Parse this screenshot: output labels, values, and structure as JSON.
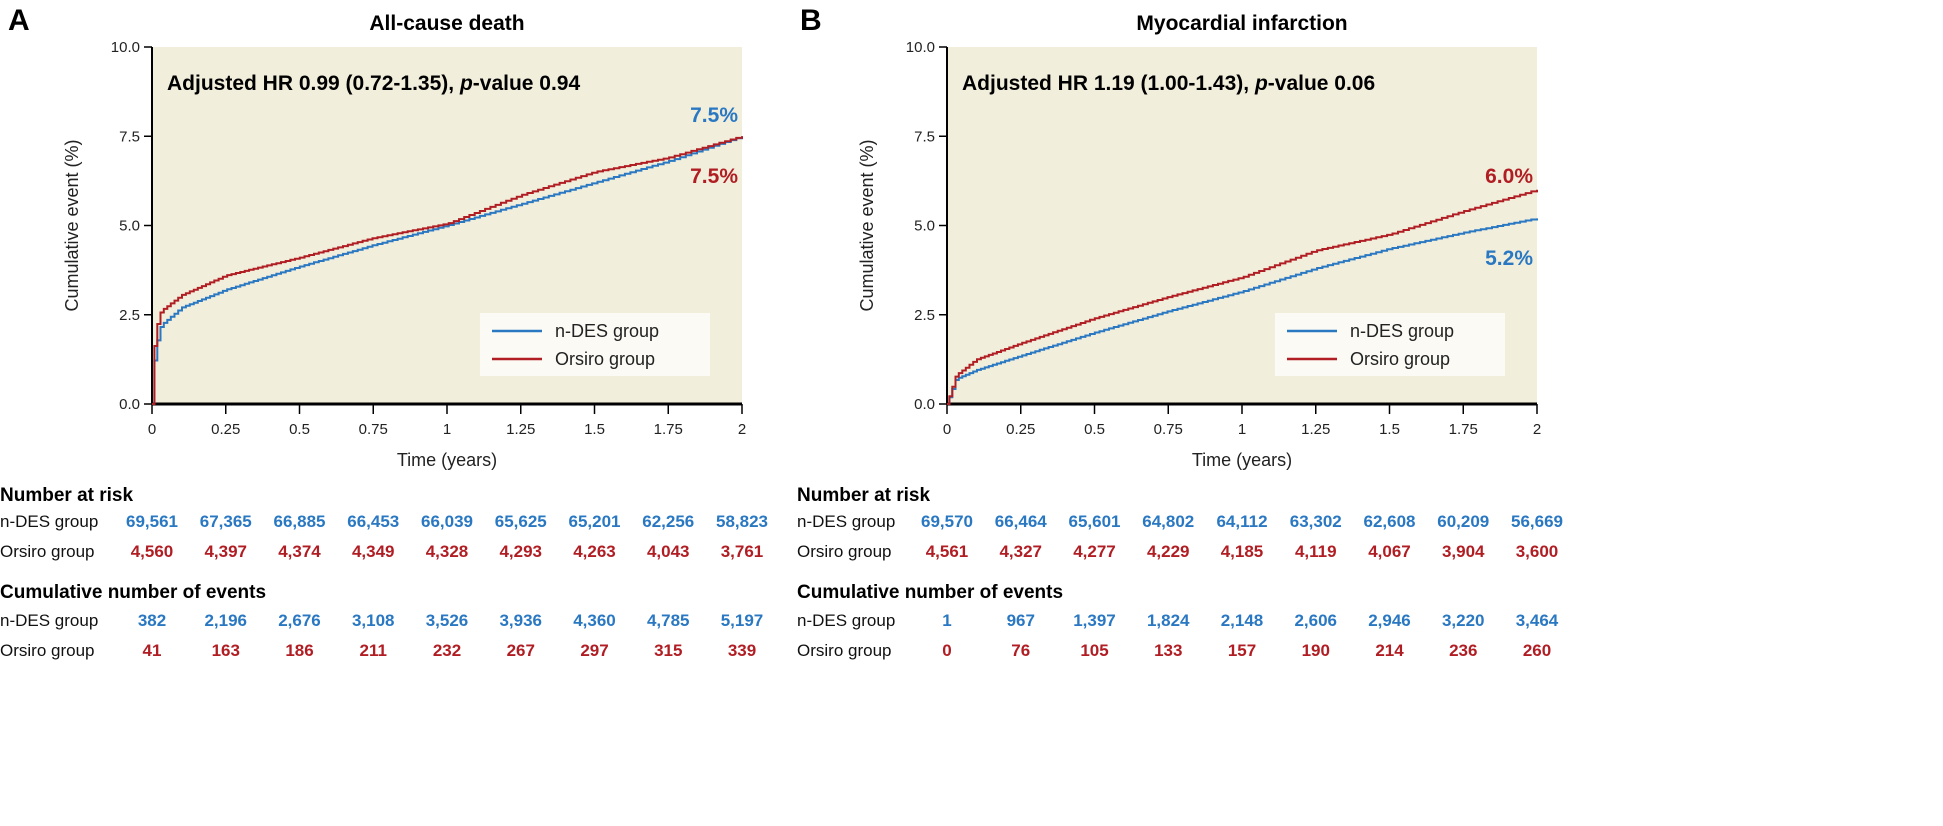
{
  "colors": {
    "n_des": "#2a78c2",
    "orsiro": "#b01e24",
    "plot_bg": "#f2eedc",
    "legend_bg": "#fbfaf5"
  },
  "chart_data": [
    {
      "type": "line",
      "panel": "A",
      "title": "All-cause death",
      "annotation": {
        "prefix": "Adjusted HR 0.99 (0.72-1.35), ",
        "p": "p",
        "suffix": "-value 0.94"
      },
      "xlabel": "Time (years)",
      "ylabel": "Cumulative event (%)",
      "xlim": [
        0,
        2
      ],
      "ylim": [
        0,
        10
      ],
      "xticks": [
        "0",
        "0.25",
        "0.5",
        "0.75",
        "1",
        "1.25",
        "1.5",
        "1.75",
        "2"
      ],
      "yticks": [
        "0.0",
        "2.5",
        "5.0",
        "7.5",
        "10.0"
      ],
      "legend": {
        "placement": "bottom-right",
        "entries": [
          "n-DES group",
          "Orsiro group"
        ]
      },
      "series": [
        {
          "name": "n-DES group",
          "end_label": "7.5%",
          "x": [
            0,
            0.01,
            0.03,
            0.1,
            0.25,
            0.5,
            0.75,
            1,
            1.25,
            1.5,
            1.75,
            2
          ],
          "y": [
            0,
            1.5,
            2.2,
            2.7,
            3.2,
            3.85,
            4.45,
            5.0,
            5.6,
            6.2,
            6.8,
            7.5
          ]
        },
        {
          "name": "Orsiro group",
          "end_label": "7.5%",
          "x": [
            0,
            0.01,
            0.03,
            0.1,
            0.25,
            0.5,
            0.75,
            1,
            1.25,
            1.5,
            1.75,
            2
          ],
          "y": [
            0,
            2.0,
            2.6,
            3.05,
            3.6,
            4.1,
            4.65,
            5.05,
            5.85,
            6.5,
            6.9,
            7.5
          ]
        }
      ],
      "risk_table": {
        "heading": "Number at risk",
        "rows": [
          {
            "label": "n-DES group",
            "values": [
              "69,561",
              "67,365",
              "66,885",
              "66,453",
              "66,039",
              "65,625",
              "65,201",
              "62,256",
              "58,823"
            ]
          },
          {
            "label": "Orsiro group",
            "values": [
              "4,560",
              "4,397",
              "4,374",
              "4,349",
              "4,328",
              "4,293",
              "4,263",
              "4,043",
              "3,761"
            ]
          }
        ]
      },
      "events_table": {
        "heading": "Cumulative number of events",
        "rows": [
          {
            "label": "n-DES group",
            "values": [
              "382",
              "2,196",
              "2,676",
              "3,108",
              "3,526",
              "3,936",
              "4,360",
              "4,785",
              "5,197"
            ]
          },
          {
            "label": "Orsiro group",
            "values": [
              "41",
              "163",
              "186",
              "211",
              "232",
              "267",
              "297",
              "315",
              "339"
            ]
          }
        ]
      }
    },
    {
      "type": "line",
      "panel": "B",
      "title": "Myocardial infarction",
      "annotation": {
        "prefix": "Adjusted HR 1.19 (1.00-1.43), ",
        "p": "p",
        "suffix": "-value 0.06"
      },
      "xlabel": "Time (years)",
      "ylabel": "Cumulative event (%)",
      "xlim": [
        0,
        2
      ],
      "ylim": [
        0,
        10
      ],
      "xticks": [
        "0",
        "0.25",
        "0.5",
        "0.75",
        "1",
        "1.25",
        "1.5",
        "1.75",
        "2"
      ],
      "yticks": [
        "0.0",
        "2.5",
        "5.0",
        "7.5",
        "10.0"
      ],
      "legend": {
        "placement": "bottom-right",
        "entries": [
          "n-DES group",
          "Orsiro group"
        ]
      },
      "series": [
        {
          "name": "n-DES group",
          "end_label": "5.2%",
          "x": [
            0,
            0.03,
            0.1,
            0.25,
            0.5,
            0.75,
            1,
            1.25,
            1.5,
            1.75,
            2
          ],
          "y": [
            0,
            0.7,
            0.95,
            1.35,
            2.0,
            2.6,
            3.15,
            3.8,
            4.35,
            4.8,
            5.2
          ]
        },
        {
          "name": "Orsiro group",
          "end_label": "6.0%",
          "x": [
            0,
            0.03,
            0.1,
            0.25,
            0.5,
            0.75,
            1,
            1.25,
            1.5,
            1.75,
            2
          ],
          "y": [
            0,
            0.8,
            1.25,
            1.7,
            2.4,
            3.0,
            3.55,
            4.3,
            4.75,
            5.4,
            6.0
          ]
        }
      ],
      "risk_table": {
        "heading": "Number at risk",
        "rows": [
          {
            "label": "n-DES group",
            "values": [
              "69,570",
              "66,464",
              "65,601",
              "64,802",
              "64,112",
              "63,302",
              "62,608",
              "60,209",
              "56,669"
            ]
          },
          {
            "label": "Orsiro group",
            "values": [
              "4,561",
              "4,327",
              "4,277",
              "4,229",
              "4,185",
              "4,119",
              "4,067",
              "3,904",
              "3,600"
            ]
          }
        ]
      },
      "events_table": {
        "heading": "Cumulative number of events",
        "rows": [
          {
            "label": "n-DES group",
            "values": [
              "1",
              "967",
              "1,397",
              "1,824",
              "2,148",
              "2,606",
              "2,946",
              "3,220",
              "3,464"
            ]
          },
          {
            "label": "Orsiro group",
            "values": [
              "0",
              "76",
              "105",
              "133",
              "157",
              "190",
              "214",
              "236",
              "260"
            ]
          }
        ]
      }
    }
  ]
}
